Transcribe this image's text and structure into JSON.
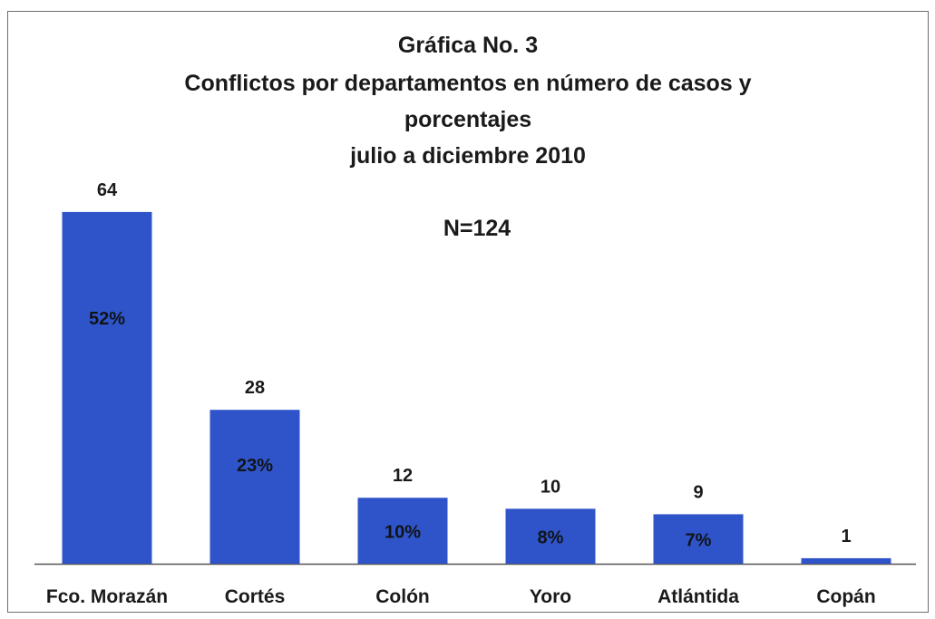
{
  "chart_data": {
    "type": "bar",
    "title_lines": [
      "Gráfica No. 3",
      "Conflictos por departamentos en número de casos y",
      "porcentajes",
      "julio a diciembre 2010"
    ],
    "annotation": "N=124",
    "categories": [
      "Fco. Morazán",
      "Cortés",
      "Colón",
      "Yoro",
      "Atlántida",
      "Copán"
    ],
    "values": [
      64,
      28,
      12,
      10,
      9,
      1
    ],
    "value_labels": [
      "64",
      "28",
      "12",
      "10",
      "9",
      "1"
    ],
    "percent_labels": [
      "52%",
      "23%",
      "10%",
      "8%",
      "7%",
      ""
    ],
    "ylim": [
      0,
      78
    ],
    "grid": false,
    "legend": "none",
    "bar_color": "#2f54c9",
    "axis_color": "#555555"
  }
}
